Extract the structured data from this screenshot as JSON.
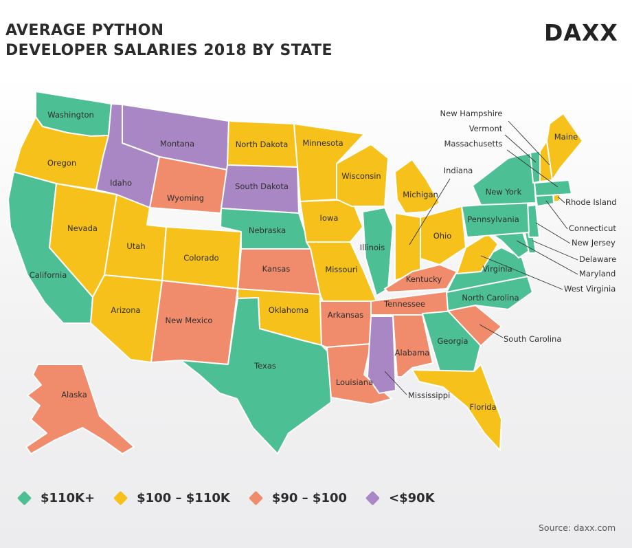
{
  "title": {
    "line1": "AVERAGE PYTHON",
    "line2": "DEVELOPER SALARIES 2018 BY STATE"
  },
  "logo": "DAXX",
  "source": "Source: daxx.com",
  "legend": [
    {
      "key": "high",
      "label": "$110K+",
      "color": "#4dbf94"
    },
    {
      "key": "mid",
      "label": "$100 – $110K",
      "color": "#f6c11b"
    },
    {
      "key": "low",
      "label": "$90 – $100",
      "color": "#f08b6c"
    },
    {
      "key": "lowest",
      "label": "<$90K",
      "color": "#a887c4"
    }
  ],
  "states": [
    {
      "name": "Washington",
      "tier": "high"
    },
    {
      "name": "Oregon",
      "tier": "mid"
    },
    {
      "name": "California",
      "tier": "high"
    },
    {
      "name": "Nevada",
      "tier": "mid"
    },
    {
      "name": "Idaho",
      "tier": "lowest"
    },
    {
      "name": "Montana",
      "tier": "lowest"
    },
    {
      "name": "Wyoming",
      "tier": "low"
    },
    {
      "name": "Utah",
      "tier": "mid"
    },
    {
      "name": "Arizona",
      "tier": "mid"
    },
    {
      "name": "Colorado",
      "tier": "mid"
    },
    {
      "name": "New Mexico",
      "tier": "low"
    },
    {
      "name": "North Dakota",
      "tier": "mid"
    },
    {
      "name": "South Dakota",
      "tier": "lowest"
    },
    {
      "name": "Nebraska",
      "tier": "high"
    },
    {
      "name": "Kansas",
      "tier": "low"
    },
    {
      "name": "Oklahoma",
      "tier": "mid"
    },
    {
      "name": "Texas",
      "tier": "high"
    },
    {
      "name": "Minnesota",
      "tier": "mid"
    },
    {
      "name": "Iowa",
      "tier": "mid"
    },
    {
      "name": "Missouri",
      "tier": "mid"
    },
    {
      "name": "Arkansas",
      "tier": "low"
    },
    {
      "name": "Louisiana",
      "tier": "low"
    },
    {
      "name": "Wisconsin",
      "tier": "mid"
    },
    {
      "name": "Illinois",
      "tier": "high"
    },
    {
      "name": "Michigan",
      "tier": "mid"
    },
    {
      "name": "Indiana",
      "tier": "mid"
    },
    {
      "name": "Ohio",
      "tier": "mid"
    },
    {
      "name": "Kentucky",
      "tier": "low"
    },
    {
      "name": "Tennessee",
      "tier": "low"
    },
    {
      "name": "Mississippi",
      "tier": "lowest"
    },
    {
      "name": "Alabama",
      "tier": "low"
    },
    {
      "name": "Georgia",
      "tier": "high"
    },
    {
      "name": "Florida",
      "tier": "mid"
    },
    {
      "name": "South Carolina",
      "tier": "low"
    },
    {
      "name": "North Carolina",
      "tier": "high"
    },
    {
      "name": "Virginia",
      "tier": "high"
    },
    {
      "name": "West Virginia",
      "tier": "mid"
    },
    {
      "name": "Maryland",
      "tier": "high"
    },
    {
      "name": "Delaware",
      "tier": "high"
    },
    {
      "name": "New Jersey",
      "tier": "high"
    },
    {
      "name": "Pennsylvania",
      "tier": "high"
    },
    {
      "name": "New York",
      "tier": "high"
    },
    {
      "name": "Connecticut",
      "tier": "high"
    },
    {
      "name": "Rhode Island",
      "tier": "mid"
    },
    {
      "name": "Massachusetts",
      "tier": "high"
    },
    {
      "name": "Vermont",
      "tier": "high"
    },
    {
      "name": "New Hampshire",
      "tier": "mid"
    },
    {
      "name": "Maine",
      "tier": "mid"
    },
    {
      "name": "Alaska",
      "tier": "low"
    }
  ]
}
